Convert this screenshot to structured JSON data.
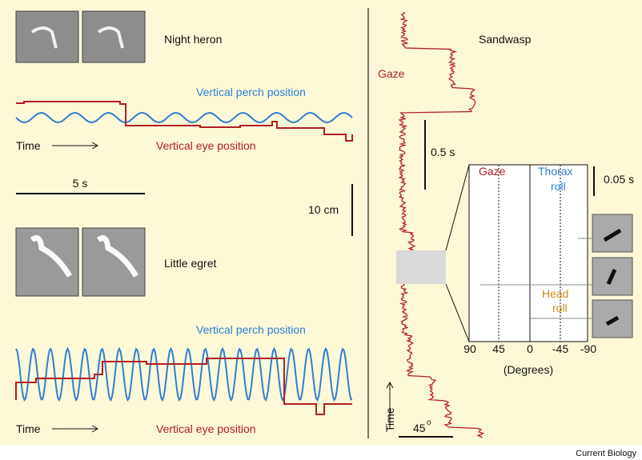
{
  "left": {
    "heron": {
      "label": "Night heron",
      "perch_label": "Vertical perch position",
      "eye_label": "Vertical eye position",
      "time_label": "Time"
    },
    "time_scale": "5 s",
    "length_scale": "10 cm",
    "egret": {
      "label": "Little egret",
      "perch_label": "Vertical perch position",
      "eye_label": "Vertical eye position",
      "time_label": "Time"
    }
  },
  "right": {
    "title": "Sandwasp",
    "gaze_label": "Gaze",
    "time_scale": "0.5 s",
    "angle_scale": "45",
    "angle_unit": "o",
    "time_label": "Time",
    "inset": {
      "gaze_label": "Gaze",
      "thorax_label": [
        "Thorax",
        "roll"
      ],
      "head_label": [
        "Head",
        "roll"
      ],
      "time_scale": "0.05 s",
      "ticks": [
        "90",
        "45",
        "0",
        "-45",
        "-90"
      ],
      "axis_label": "(Degrees)"
    }
  },
  "footer": "Current Biology"
}
